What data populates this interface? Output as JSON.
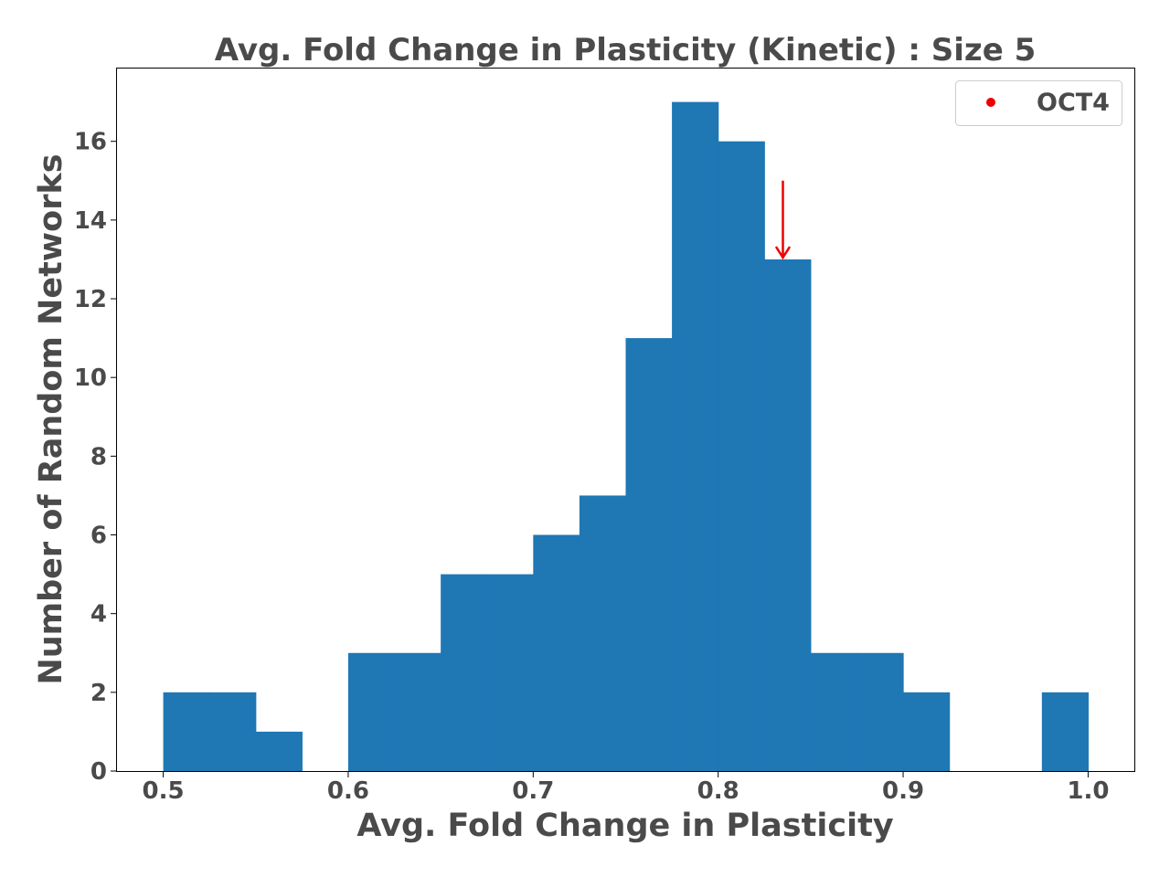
{
  "chart_data": {
    "type": "bar",
    "title": "Avg. Fold Change in Plasticity (Kinetic) : Size 5",
    "xlabel": "Avg. Fold Change in Plasticity",
    "ylabel": "Number of Random Networks",
    "xlim": [
      0.475,
      1.025
    ],
    "ylim": [
      0,
      17.85
    ],
    "xticks": [
      "0.5",
      "0.6",
      "0.7",
      "0.8",
      "0.9",
      "1.0"
    ],
    "xtick_values": [
      0.5,
      0.6,
      0.7,
      0.8,
      0.9,
      1.0
    ],
    "yticks": [
      "0",
      "2",
      "4",
      "6",
      "8",
      "10",
      "12",
      "14",
      "16"
    ],
    "ytick_values": [
      0,
      2,
      4,
      6,
      8,
      10,
      12,
      14,
      16
    ],
    "bin_edges": [
      0.5,
      0.525,
      0.55,
      0.575,
      0.6,
      0.625,
      0.65,
      0.675,
      0.7,
      0.725,
      0.75,
      0.775,
      0.8,
      0.825,
      0.85,
      0.875,
      0.9,
      0.925,
      0.95,
      0.975,
      1.0
    ],
    "values": [
      2,
      2,
      1,
      0,
      3,
      3,
      5,
      5,
      6,
      7,
      11,
      17,
      16,
      13,
      3,
      3,
      2,
      0,
      0,
      2
    ],
    "bar_color": "#1f77b4",
    "marker": {
      "name": "OCT4",
      "x": 0.835,
      "arrow_from_y": 15,
      "arrow_to_y": 13,
      "color": "#ee0000"
    },
    "legend": {
      "placement": "top-right",
      "entries": [
        "OCT4"
      ]
    },
    "grid": false
  }
}
